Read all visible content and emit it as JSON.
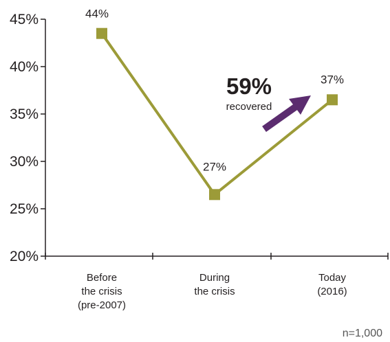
{
  "chart_data": {
    "type": "line",
    "categories": [
      [
        "Before",
        "the crisis",
        "(pre-2007)"
      ],
      [
        "During",
        "the crisis"
      ],
      [
        "Today",
        "(2016)"
      ]
    ],
    "series": [
      {
        "values": [
          43.5,
          26.5,
          36.5
        ],
        "data_labels": [
          "44%",
          "27%",
          "37%"
        ]
      }
    ],
    "ylim": [
      20,
      45
    ],
    "yticks": [
      20,
      25,
      30,
      35,
      40,
      45
    ],
    "ytick_labels": [
      "20%",
      "25%",
      "30%",
      "35%",
      "40%",
      "45%"
    ],
    "grid": false,
    "annotation": {
      "value": "59%",
      "text": "recovered"
    },
    "note": "n=1,000",
    "colors": {
      "line": "#9c9b38",
      "marker": "#9c9b38",
      "arrow": "#5b2c6f",
      "axis": "#231f20"
    }
  }
}
